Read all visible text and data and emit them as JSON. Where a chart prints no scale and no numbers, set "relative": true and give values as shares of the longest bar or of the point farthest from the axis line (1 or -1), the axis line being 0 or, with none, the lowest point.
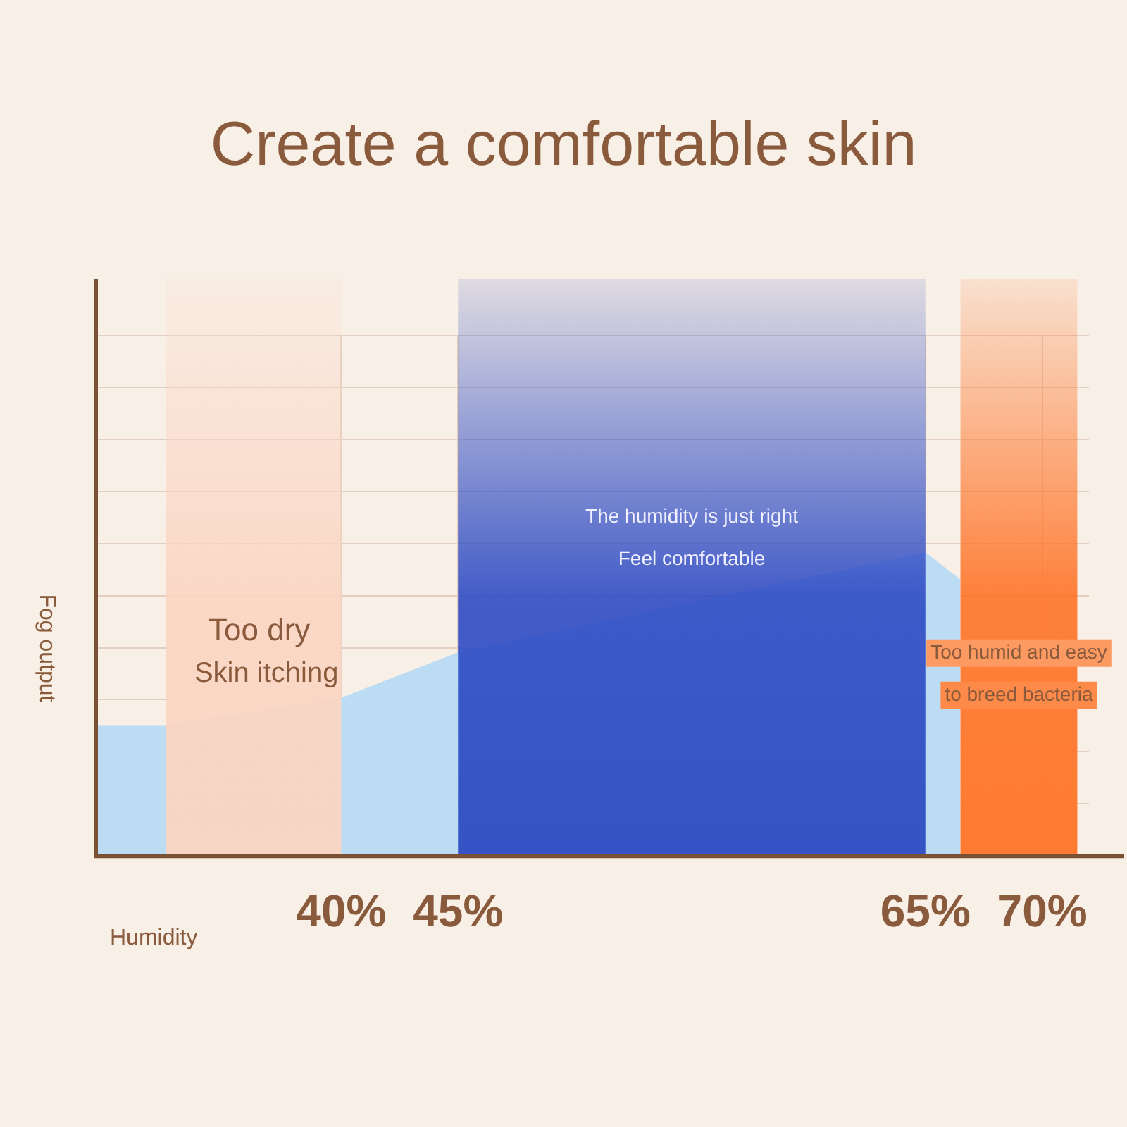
{
  "chart_data": {
    "type": "area",
    "title": "Create a comfortable skin",
    "xlabel": "Humidity",
    "ylabel": "Fog output",
    "relative": true,
    "xlim": [
      29.5,
      72
    ],
    "xticks": [
      {
        "value": 40,
        "label": "40%"
      },
      {
        "value": 45,
        "label": "45%"
      },
      {
        "value": 65,
        "label": "65%"
      },
      {
        "value": 70,
        "label": "70%"
      }
    ],
    "series": [
      {
        "color": "#bcdcf4",
        "x": [
          29.5,
          32.5,
          40,
          45,
          65,
          66.5
        ],
        "values": [
          0.43,
          0.43,
          0.52,
          0.67,
          1,
          0.91
        ]
      }
    ],
    "bands": [
      {
        "axis": "x",
        "from": 32.5,
        "to": 40,
        "color": "#fbd5c2"
      },
      {
        "axis": "x",
        "from": 45,
        "to": 65,
        "color": "#2f4cc4"
      },
      {
        "axis": "x",
        "from": 66.5,
        "to": 71.5,
        "color": "#ff7428"
      }
    ],
    "annotations": [
      "Too dry",
      "Skin itching",
      "The humidity is just right",
      "Feel comfortable",
      "Too humid and easy",
      "to breed bacteria"
    ],
    "grid": true,
    "tick_labels": "x",
    "legend": false
  }
}
